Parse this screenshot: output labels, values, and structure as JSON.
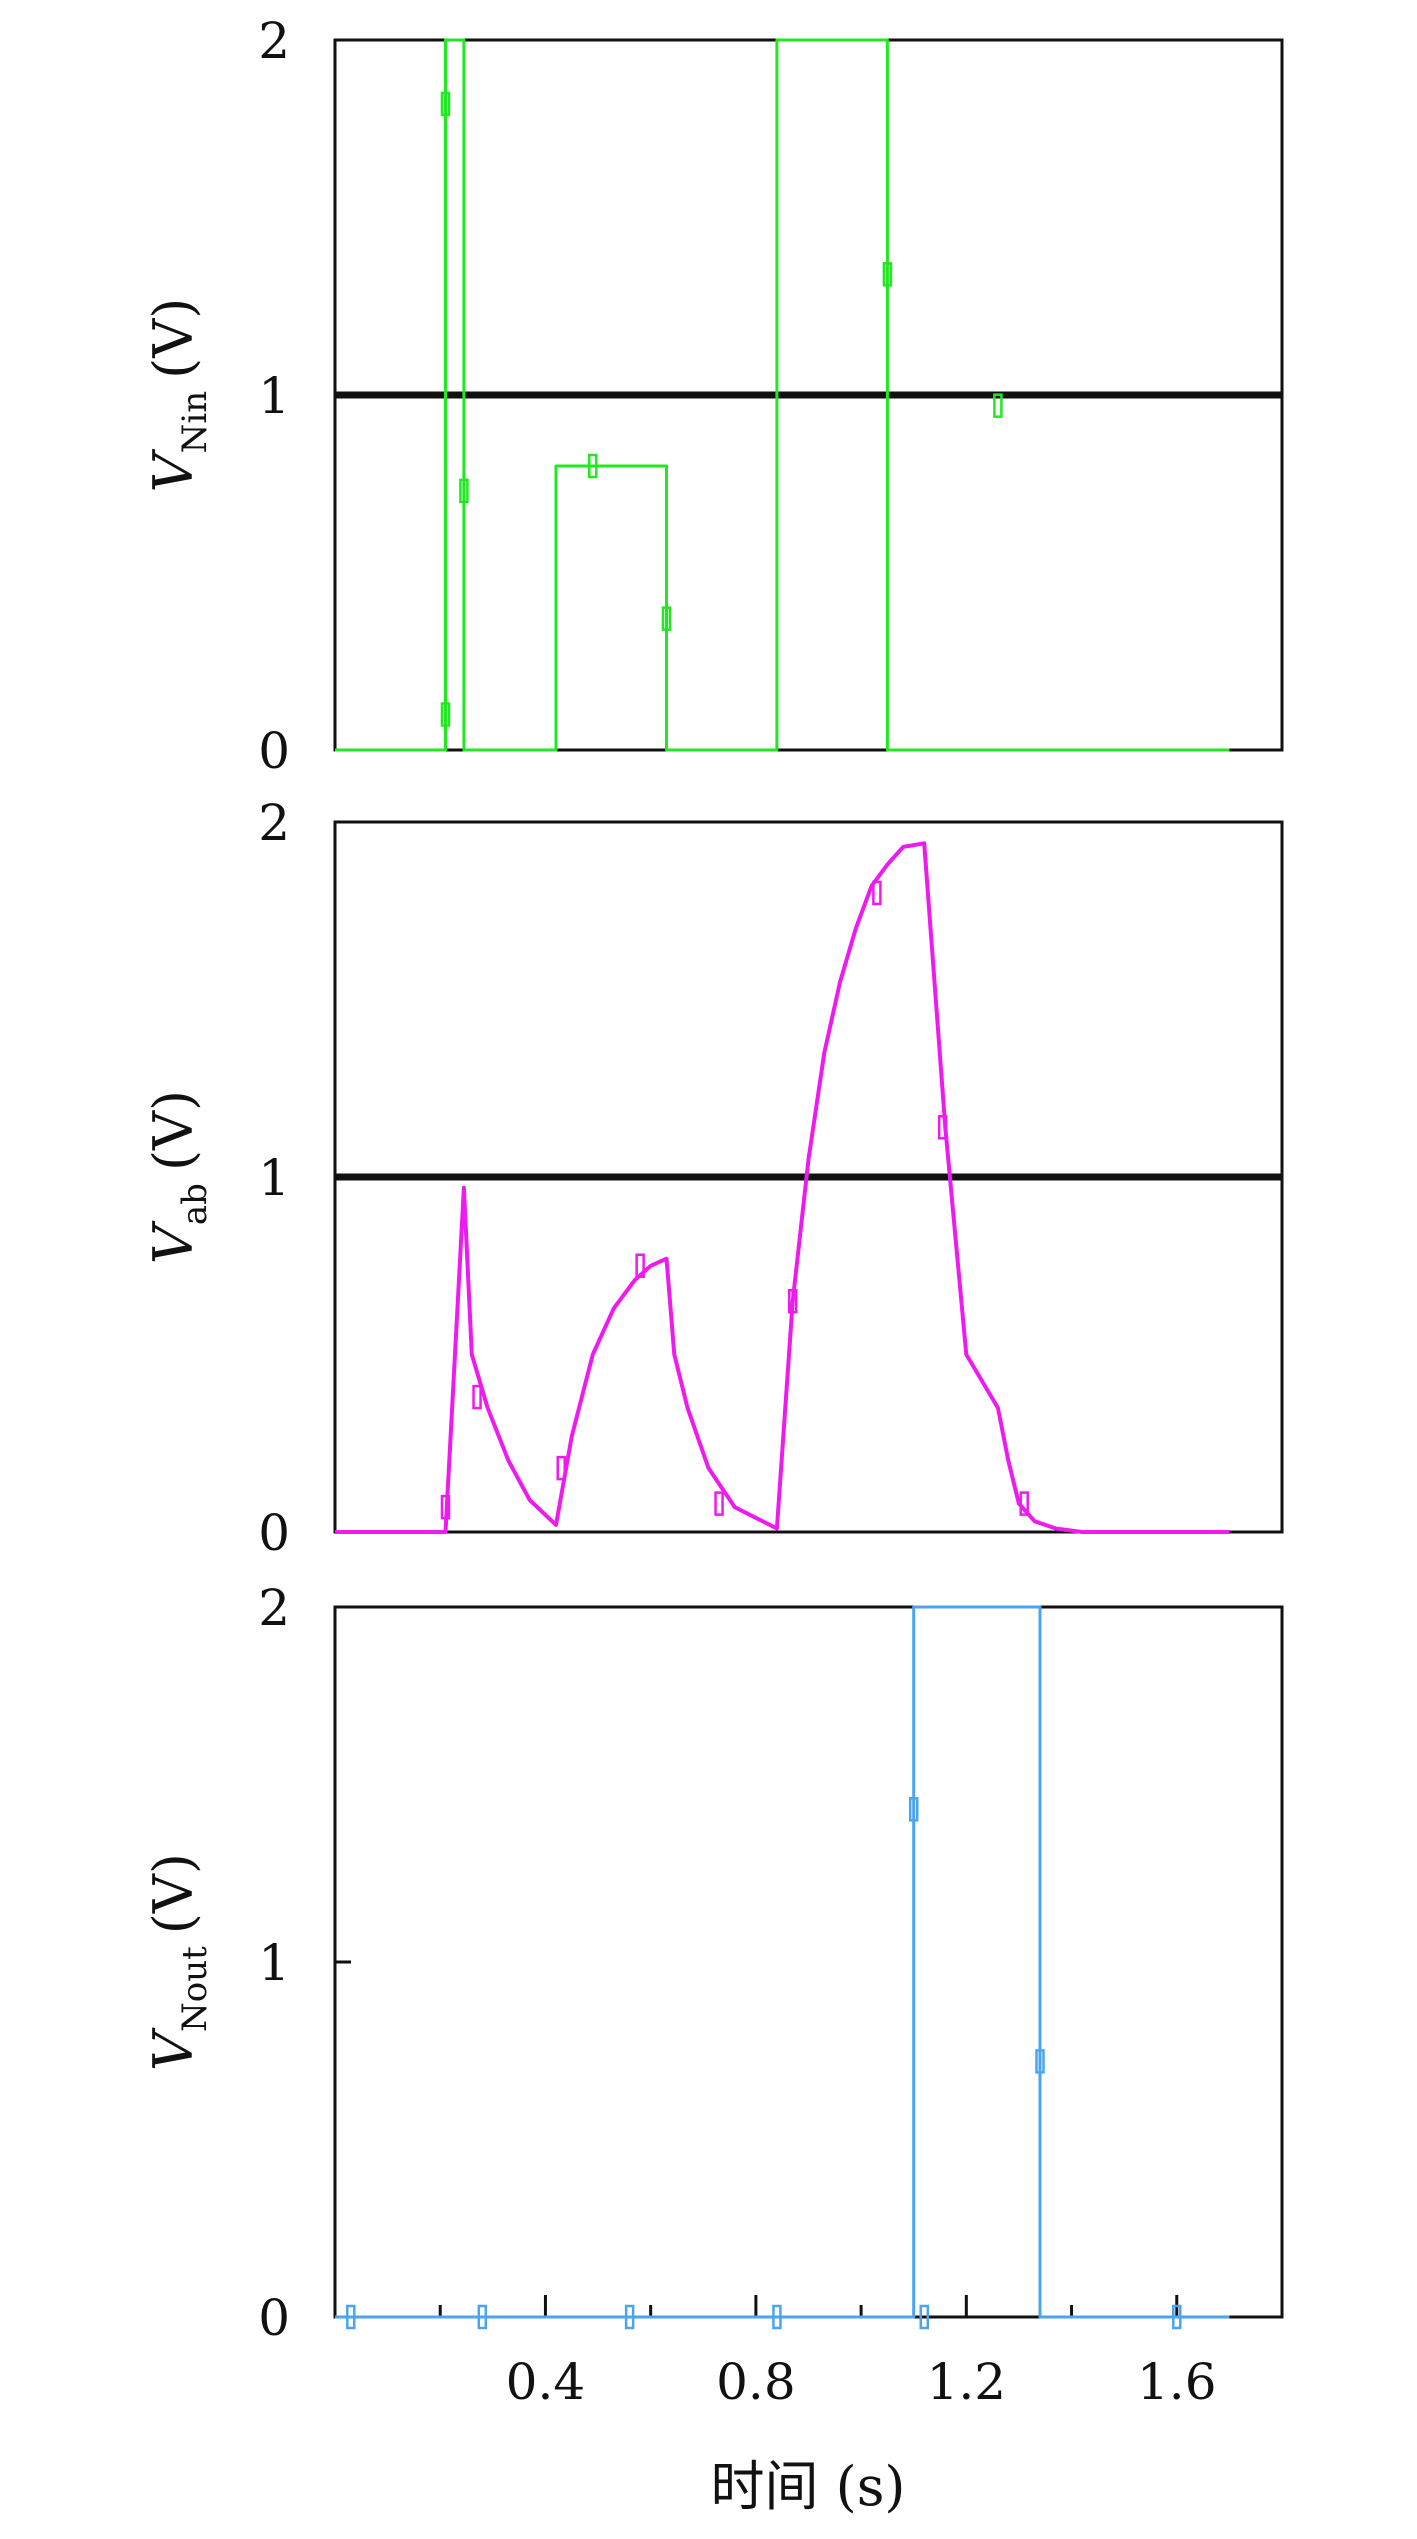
{
  "chart_data": [
    {
      "type": "line",
      "ylabel": "V",
      "ylabel_sub": "Nin",
      "ylabel_unit": "(V)",
      "xlim": [
        0,
        1.8
      ],
      "ylim": [
        0,
        2
      ],
      "yticks": [
        0,
        1,
        2
      ],
      "threshold_line": 1,
      "series": [
        {
          "color": "#22e822",
          "x": [
            0,
            0.21,
            0.21,
            0.245,
            0.245,
            0.42,
            0.42,
            0.63,
            0.63,
            0.84,
            0.84,
            1.05,
            1.05,
            1.26,
            1.26,
            1.7
          ],
          "y": [
            0,
            0,
            2,
            2,
            0,
            0,
            0.8,
            0.8,
            0,
            0,
            2,
            2,
            0,
            0,
            0,
            0
          ]
        }
      ],
      "markers": [
        {
          "x": 0.21,
          "y": 0.1
        },
        {
          "x": 0.21,
          "y": 1.82
        },
        {
          "x": 0.245,
          "y": 0.73
        },
        {
          "x": 0.49,
          "y": 0.8
        },
        {
          "x": 0.63,
          "y": 0.37
        },
        {
          "x": 1.05,
          "y": 1.34
        },
        {
          "x": 1.26,
          "y": 0.97
        }
      ]
    },
    {
      "type": "line",
      "ylabel": "V",
      "ylabel_sub": "ab",
      "ylabel_unit": "(V)",
      "xlim": [
        0,
        1.8
      ],
      "ylim": [
        0,
        2
      ],
      "yticks": [
        0,
        1,
        2
      ],
      "threshold_line": 1,
      "series": [
        {
          "color": "#ee1bee",
          "x": [
            0,
            0.21,
            0.245,
            0.26,
            0.29,
            0.33,
            0.37,
            0.42,
            0.45,
            0.49,
            0.53,
            0.57,
            0.6,
            0.63,
            0.645,
            0.67,
            0.71,
            0.76,
            0.84,
            0.87,
            0.9,
            0.93,
            0.96,
            0.99,
            1.02,
            1.05,
            1.08,
            1.12,
            1.16,
            1.2,
            1.26,
            1.28,
            1.3,
            1.33,
            1.37,
            1.42,
            1.5,
            1.6,
            1.7
          ],
          "y": [
            0,
            0,
            0.97,
            0.5,
            0.35,
            0.2,
            0.09,
            0.02,
            0.27,
            0.5,
            0.63,
            0.71,
            0.75,
            0.77,
            0.5,
            0.35,
            0.18,
            0.07,
            0.01,
            0.65,
            1.05,
            1.35,
            1.55,
            1.7,
            1.82,
            1.88,
            1.93,
            1.94,
            1.14,
            0.5,
            0.35,
            0.2,
            0.08,
            0.03,
            0.01,
            0,
            0,
            0,
            0
          ]
        }
      ],
      "markers": [
        {
          "x": 0.21,
          "y": 0.07
        },
        {
          "x": 0.27,
          "y": 0.38
        },
        {
          "x": 0.43,
          "y": 0.18
        },
        {
          "x": 0.58,
          "y": 0.75
        },
        {
          "x": 0.73,
          "y": 0.08
        },
        {
          "x": 0.87,
          "y": 0.65
        },
        {
          "x": 1.03,
          "y": 1.8
        },
        {
          "x": 1.155,
          "y": 1.14
        },
        {
          "x": 1.31,
          "y": 0.08
        }
      ]
    },
    {
      "type": "line",
      "ylabel": "V",
      "ylabel_sub": "Nout",
      "ylabel_unit": "(V)",
      "xlabel": "时间 (s)",
      "xlim": [
        0,
        1.8
      ],
      "ylim": [
        0,
        2
      ],
      "yticks": [
        0,
        1,
        2
      ],
      "xticks": [
        0.4,
        0.8,
        1.2,
        1.6
      ],
      "series": [
        {
          "color": "#4aa5ee",
          "x": [
            0,
            1.1,
            1.1,
            1.34,
            1.34,
            1.7
          ],
          "y": [
            0,
            0,
            2,
            2,
            0,
            0
          ]
        }
      ],
      "markers": [
        {
          "x": 0.03,
          "y": 0
        },
        {
          "x": 0.28,
          "y": 0
        },
        {
          "x": 0.56,
          "y": 0
        },
        {
          "x": 0.84,
          "y": 0
        },
        {
          "x": 1.12,
          "y": 0
        },
        {
          "x": 1.1,
          "y": 1.43
        },
        {
          "x": 1.34,
          "y": 0.72
        },
        {
          "x": 1.6,
          "y": 0
        }
      ]
    }
  ]
}
